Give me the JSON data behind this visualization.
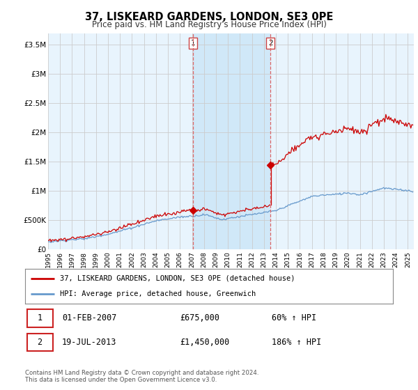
{
  "title": "37, LISKEARD GARDENS, LONDON, SE3 0PE",
  "subtitle": "Price paid vs. HM Land Registry's House Price Index (HPI)",
  "plot_bg_color": "#e8f4fd",
  "fig_bg_color": "#ffffff",
  "shade_color": "#d0e8f8",
  "ylabel_ticks": [
    "£0",
    "£500K",
    "£1M",
    "£1.5M",
    "£2M",
    "£2.5M",
    "£3M",
    "£3.5M"
  ],
  "ytick_values": [
    0,
    500000,
    1000000,
    1500000,
    2000000,
    2500000,
    3000000,
    3500000
  ],
  "ylim": [
    0,
    3700000
  ],
  "xlim_start": 1995.0,
  "xlim_end": 2025.5,
  "sale1_x": 2007.083,
  "sale1_y": 675000,
  "sale2_x": 2013.542,
  "sale2_y": 1450000,
  "legend_line1": "37, LISKEARD GARDENS, LONDON, SE3 0PE (detached house)",
  "legend_line2": "HPI: Average price, detached house, Greenwich",
  "table_row1_date": "01-FEB-2007",
  "table_row1_price": "£675,000",
  "table_row1_hpi": "60% ↑ HPI",
  "table_row2_date": "19-JUL-2013",
  "table_row2_price": "£1,450,000",
  "table_row2_hpi": "186% ↑ HPI",
  "footer": "Contains HM Land Registry data © Crown copyright and database right 2024.\nThis data is licensed under the Open Government Licence v3.0.",
  "line_red_color": "#cc0000",
  "line_blue_color": "#6699cc",
  "vline_color": "#dd6666",
  "grid_color": "#cccccc"
}
